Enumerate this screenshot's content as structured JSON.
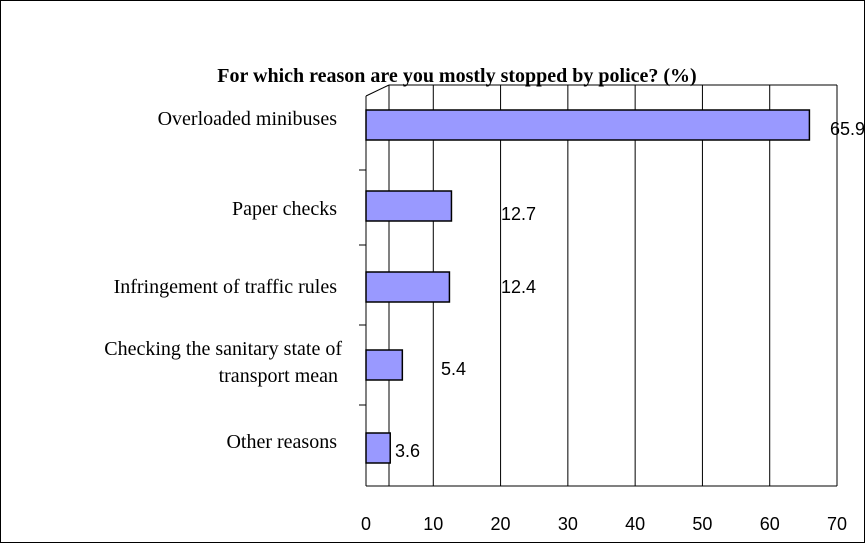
{
  "chart_data": {
    "type": "bar",
    "orientation": "horizontal",
    "title": "For which reason are you mostly stopped by police? (%)",
    "categories": [
      "Overloaded minibuses",
      "Paper checks",
      "Infringement of traffic rules",
      "Checking the sanitary state of transport mean",
      "Other reasons"
    ],
    "values": [
      65.9,
      12.7,
      12.4,
      5.4,
      3.6
    ],
    "value_labels": [
      "65.9",
      "12.7",
      "12.4",
      "5.4",
      "3.6"
    ],
    "xlim": [
      0,
      70
    ],
    "xticks": [
      "0",
      "10",
      "20",
      "30",
      "40",
      "50",
      "60",
      "70"
    ],
    "grid": "vertical",
    "legend": "none",
    "bar_color": "#9999ff",
    "bar_edge_color": "#000000"
  }
}
